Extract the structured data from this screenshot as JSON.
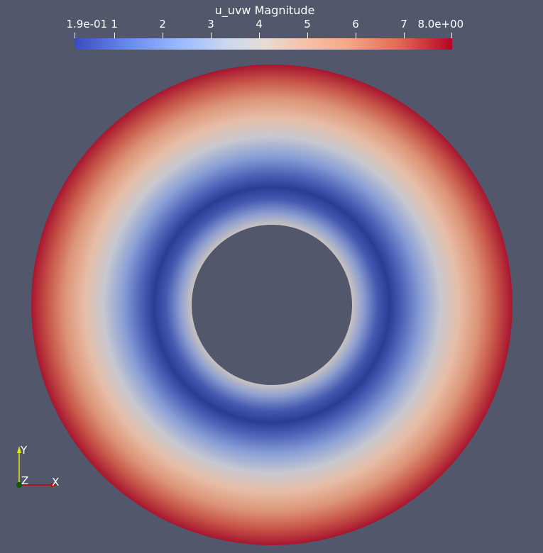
{
  "colorbar": {
    "title": "u_uvw Magnitude",
    "ticks": [
      "1.9e-01",
      "1",
      "2",
      "3",
      "4",
      "5",
      "6",
      "7",
      "8.0e+00"
    ],
    "range": [
      0.19,
      8.0
    ],
    "colormap": "Cool to Warm",
    "colors": [
      "#3b4cc0",
      "#dddddd",
      "#b40426"
    ]
  },
  "scene": {
    "background": "#52576b",
    "annulus_colors": [
      "#c9c3c0",
      "#7f95cf",
      "#2b3c94",
      "#5f77c4",
      "#bcc2cf",
      "#e3b39a",
      "#cf6f57",
      "#a8152f"
    ]
  },
  "axes": {
    "y_label": "Y",
    "z_label": "Z",
    "x_label": "X",
    "y_color": "#e6e600",
    "x_color": "#cc0000",
    "z_color": "#0a5d0a"
  }
}
